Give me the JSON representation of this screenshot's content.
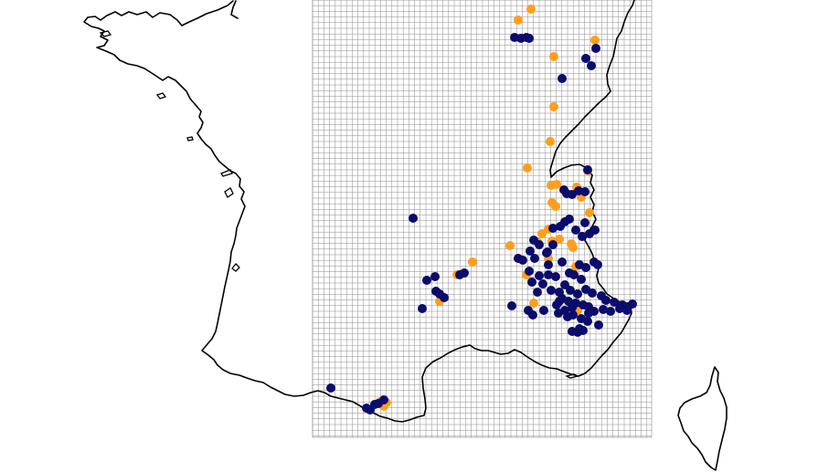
{
  "map": {
    "colors": {
      "background": "#ffffff",
      "coastline": "#000000",
      "grid": "#8c8c8c",
      "series_a": "#ff9e1b",
      "series_b": "#0b0c6b"
    },
    "layers": [
      "coastline",
      "grid",
      "occurrence-points"
    ]
  },
  "chart_data": {
    "type": "scatter",
    "grid": true,
    "axes_shown": false,
    "legend": "none",
    "series": [
      {
        "color": "#ff9e1b",
        "points": [
          [
            567,
            22
          ],
          [
            581,
            10
          ],
          [
            651,
            44
          ],
          [
            606,
            62
          ],
          [
            606,
            117
          ],
          [
            602,
            155
          ],
          [
            577,
            184
          ],
          [
            643,
            187
          ],
          [
            603,
            203
          ],
          [
            609,
            202
          ],
          [
            631,
            205
          ],
          [
            636,
            216
          ],
          [
            604,
            222
          ],
          [
            608,
            226
          ],
          [
            645,
            233
          ],
          [
            600,
            251
          ],
          [
            593,
            256
          ],
          [
            604,
            264
          ],
          [
            612,
            262
          ],
          [
            588,
            265
          ],
          [
            558,
            269
          ],
          [
            625,
            267
          ],
          [
            627,
            271
          ],
          [
            517,
            287
          ],
          [
            600,
            283
          ],
          [
            576,
            301
          ],
          [
            630,
            292
          ],
          [
            481,
            330
          ],
          [
            584,
            332
          ],
          [
            632,
            340
          ],
          [
            423,
            441
          ],
          [
            420,
            445
          ],
          [
            416,
            440
          ],
          [
            500,
            301
          ]
        ]
      },
      {
        "color": "#0b0c6b",
        "points": [
          [
            563,
            41
          ],
          [
            570,
            42
          ],
          [
            576,
            41
          ],
          [
            579,
            42
          ],
          [
            652,
            53
          ],
          [
            641,
            64
          ],
          [
            647,
            72
          ],
          [
            615,
            86
          ],
          [
            452,
            239
          ],
          [
            643,
            186
          ],
          [
            617,
            208
          ],
          [
            626,
            213
          ],
          [
            633,
            209
          ],
          [
            620,
            212
          ],
          [
            640,
            210
          ],
          [
            618,
            243
          ],
          [
            613,
            248
          ],
          [
            623,
            240
          ],
          [
            630,
            252
          ],
          [
            637,
            259
          ],
          [
            645,
            256
          ],
          [
            651,
            252
          ],
          [
            640,
            244
          ],
          [
            605,
            250
          ],
          [
            584,
            263
          ],
          [
            590,
            268
          ],
          [
            605,
            268
          ],
          [
            580,
            275
          ],
          [
            585,
            283
          ],
          [
            572,
            285
          ],
          [
            567,
            283
          ],
          [
            598,
            277
          ],
          [
            600,
            290
          ],
          [
            579,
            297
          ],
          [
            590,
            302
          ],
          [
            600,
            301
          ],
          [
            608,
            303
          ],
          [
            582,
            309
          ],
          [
            594,
            311
          ],
          [
            603,
            318
          ],
          [
            588,
            320
          ],
          [
            623,
            299
          ],
          [
            634,
            290
          ],
          [
            641,
            293
          ],
          [
            650,
            287
          ],
          [
            654,
            290
          ],
          [
            628,
            301
          ],
          [
            636,
            306
          ],
          [
            618,
            312
          ],
          [
            612,
            320
          ],
          [
            624,
            318
          ],
          [
            632,
            322
          ],
          [
            641,
            317
          ],
          [
            648,
            321
          ],
          [
            658,
            324
          ],
          [
            663,
            329
          ],
          [
            672,
            331
          ],
          [
            681,
            334
          ],
          [
            687,
            336
          ],
          [
            692,
            333
          ],
          [
            686,
            340
          ],
          [
            678,
            338
          ],
          [
            668,
            341
          ],
          [
            660,
            339
          ],
          [
            650,
            341
          ],
          [
            644,
            336
          ],
          [
            638,
            334
          ],
          [
            630,
            332
          ],
          [
            622,
            330
          ],
          [
            615,
            327
          ],
          [
            609,
            334
          ],
          [
            618,
            340
          ],
          [
            627,
            345
          ],
          [
            636,
            349
          ],
          [
            643,
            352
          ],
          [
            655,
            356
          ],
          [
            634,
            360
          ],
          [
            626,
            363
          ],
          [
            632,
            364
          ],
          [
            638,
            362
          ],
          [
            621,
            347
          ],
          [
            611,
            343
          ],
          [
            644,
            343
          ],
          [
            626,
            337
          ],
          [
            612,
            330
          ],
          [
            578,
            340
          ],
          [
            583,
            345
          ],
          [
            595,
            340
          ],
          [
            560,
            335
          ],
          [
            467,
            307
          ],
          [
            476,
            303
          ],
          [
            503,
            301
          ],
          [
            508,
            299
          ],
          [
            481,
            322
          ],
          [
            486,
            326
          ],
          [
            477,
            319
          ],
          [
            462,
            338
          ],
          [
            362,
            425
          ],
          [
            401,
            447
          ],
          [
            405,
            449
          ],
          [
            410,
            443
          ],
          [
            414,
            442
          ],
          [
            420,
            438
          ],
          [
            599,
            276
          ],
          [
            615,
            287
          ]
        ]
      }
    ]
  }
}
